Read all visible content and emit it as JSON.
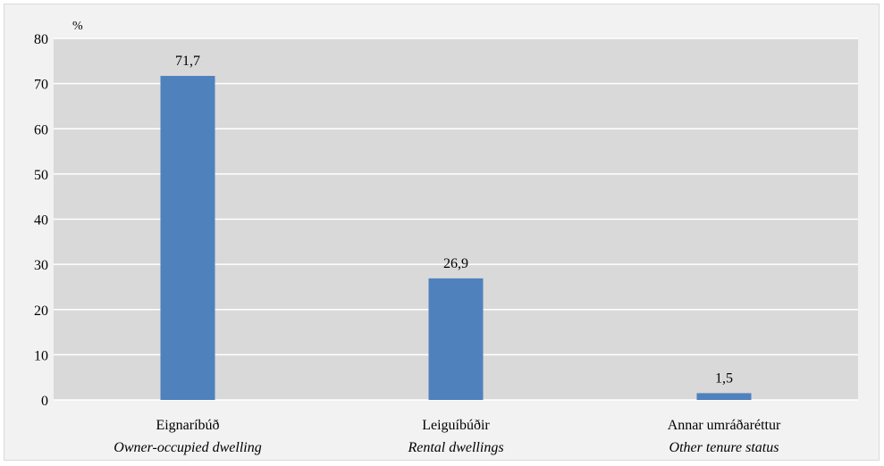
{
  "chart_data": {
    "type": "bar",
    "title": "",
    "unit_label": "%",
    "xlabel": "",
    "ylabel": "",
    "ylim": [
      0,
      80
    ],
    "yticks": [
      0,
      10,
      20,
      30,
      40,
      50,
      60,
      70,
      80
    ],
    "grid": true,
    "categories": [
      {
        "label": "Eignaríbúð",
        "sublabel": "Owner-occupied dwelling"
      },
      {
        "label": "Leiguíbúðir",
        "sublabel": "Rental dwellings"
      },
      {
        "label": "Annar umráðaréttur",
        "sublabel": "Other tenure status"
      }
    ],
    "values": [
      71.7,
      26.9,
      1.5
    ],
    "value_labels": [
      "71,7",
      "26,9",
      "1,5"
    ],
    "colors": {
      "bar": "#4f81bd",
      "plot_background": "#d9d9d9",
      "gridline": "#ffffff"
    }
  }
}
